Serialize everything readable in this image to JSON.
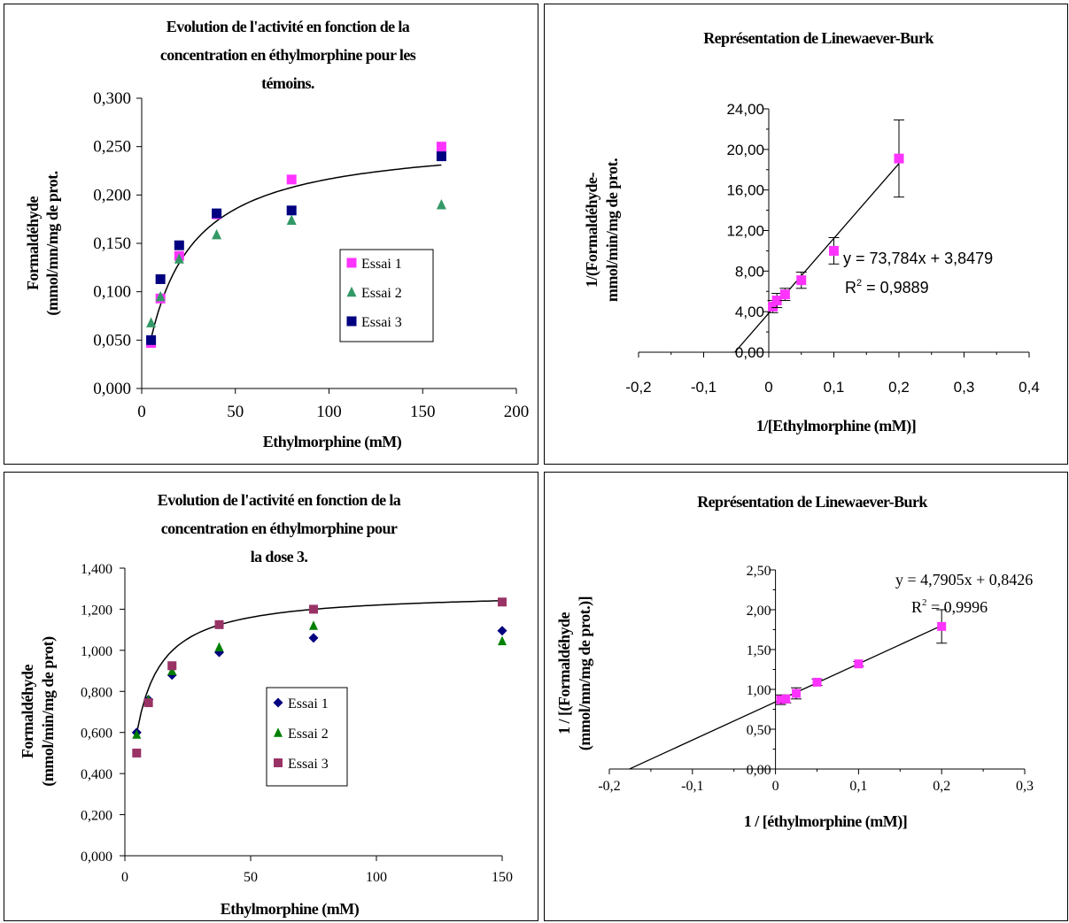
{
  "chart_data": [
    {
      "type": "scatter",
      "title": "Evolution de l'activité en fonction de la concentration en éthylmorphine pour les témoins.",
      "title_lines": [
        "Evolution de l'activité en fonction de la",
        "concentration en éthylmorphine pour les",
        "témoins."
      ],
      "xlabel": "Ethylmorphine (mM)",
      "ylabel": "Formaldéhyde (mmol/mn/mg de prot.",
      "ylabel_lines": [
        "Formaldéhyde",
        "(mmol/mn/mg de prot."
      ],
      "xlim": [
        0,
        200
      ],
      "ylim": [
        0,
        0.3
      ],
      "x_ticks": [
        "0",
        "50",
        "100",
        "150",
        "200"
      ],
      "y_ticks": [
        "0,000",
        "0,050",
        "0,100",
        "0,150",
        "0,200",
        "0,250",
        "0,300"
      ],
      "legend": "right",
      "fit": {
        "type": "michaelis-menten",
        "vmax": 0.26,
        "km": 20.1,
        "x_range": [
          5,
          160
        ]
      },
      "series": [
        {
          "name": "Essai 1",
          "marker": "square",
          "color": "#ff33ff",
          "x": [
            5,
            10,
            20,
            40,
            80,
            160
          ],
          "y": [
            0.047,
            0.093,
            0.137,
            0.18,
            0.216,
            0.25
          ]
        },
        {
          "name": "Essai 2",
          "marker": "triangle",
          "color": "#339966",
          "x": [
            5,
            10,
            20,
            40,
            80,
            160
          ],
          "y": [
            0.068,
            0.095,
            0.134,
            0.159,
            0.174,
            0.19
          ]
        },
        {
          "name": "Essai 3",
          "marker": "square",
          "color": "#000080",
          "x": [
            5,
            10,
            20,
            40,
            80,
            160
          ],
          "y": [
            0.05,
            0.113,
            0.148,
            0.181,
            0.184,
            0.24
          ]
        }
      ]
    },
    {
      "type": "scatter",
      "title": "Représentation de Linewaever-Burk",
      "title_lines": [
        "Représentation de Linewaever-Burk"
      ],
      "xlabel": "1/[Ethylmorphine (mM)]",
      "ylabel": "1/(Formaldéhyde- mmol/min/mg de prot.",
      "ylabel_lines": [
        "1/(Formaldéhyde-",
        "mmol/min/mg de prot."
      ],
      "xlim": [
        -0.2,
        0.4
      ],
      "ylim": [
        0,
        24
      ],
      "x_ticks": [
        "-0,2",
        "-0,1",
        "0",
        "0,1",
        "0,2",
        "0,3",
        "0,4"
      ],
      "y_ticks": [
        "0,00",
        "4,00",
        "8,00",
        "12,00",
        "16,00",
        "20,00",
        "24,00"
      ],
      "equation": "y = 73,784x + 3,8479",
      "r2_label": "R",
      "r2_value": " = 0,9889",
      "fit": {
        "slope": 73.784,
        "intercept": 3.8479,
        "x_range": [
          -0.052,
          0.2
        ]
      },
      "series": [
        {
          "name": "",
          "marker": "square",
          "color": "#ff33ff",
          "x": [
            0.00625,
            0.0125,
            0.025,
            0.05,
            0.1,
            0.2
          ],
          "y": [
            4.5,
            5.1,
            5.7,
            7.1,
            10.0,
            19.1
          ],
          "error": [
            0.6,
            0.7,
            0.6,
            0.8,
            1.3,
            3.8
          ]
        }
      ]
    },
    {
      "type": "scatter",
      "title": "Evolution de l'activité en fonction de la concentration en éthylmorphine pour la dose 3.",
      "title_lines": [
        "Evolution de l'activité en fonction de la",
        "concentration en éthylmorphine pour",
        "la dose 3."
      ],
      "xlabel": "Ethylmorphine (mM)",
      "ylabel": "Formaldéhyde (mmol/min/mg de prot)",
      "ylabel_lines": [
        "Formaldéhyde",
        "(mmol/min/mg de prot)"
      ],
      "xlim": [
        0,
        160
      ],
      "ylim": [
        0,
        1.4
      ],
      "x_ticks": [
        "0",
        "50",
        "100",
        "150"
      ],
      "y_ticks": [
        "0,000",
        "0,200",
        "0,400",
        "0,600",
        "0,800",
        "1,000",
        "1,200",
        "1,400"
      ],
      "legend": "right",
      "fit": {
        "type": "michaelis-menten",
        "vmax": 1.2865,
        "km": 5.8,
        "x_range": [
          5,
          160
        ]
      },
      "series": [
        {
          "name": "Essai 1",
          "marker": "diamond",
          "color": "#000080",
          "x": [
            5,
            10,
            20,
            40,
            80,
            160
          ],
          "y": [
            0.6,
            0.76,
            0.88,
            0.99,
            1.06,
            1.095
          ]
        },
        {
          "name": "Essai 2",
          "marker": "triangle",
          "color": "#008000",
          "x": [
            5,
            10,
            20,
            40,
            80,
            160
          ],
          "y": [
            0.59,
            0.76,
            0.9,
            1.015,
            1.12,
            1.045
          ]
        },
        {
          "name": "Essai 3",
          "marker": "square",
          "color": "#993366",
          "x": [
            5,
            10,
            20,
            40,
            80,
            160
          ],
          "y": [
            0.5,
            0.745,
            0.925,
            1.125,
            1.2,
            1.235
          ]
        }
      ]
    },
    {
      "type": "scatter",
      "title": "Représentation de Linewaever-Burk",
      "title_lines": [
        "Représentation de Linewaever-Burk"
      ],
      "xlabel": "1 / [éthylmorphine (mM)]",
      "ylabel": "1 / [(Formaldéhyde (mmol/mn/mg de prot.)]",
      "ylabel_lines": [
        "1 / [(Formaldéhyde",
        "(mmol/mn/mg de prot.)]"
      ],
      "xlim": [
        -0.2,
        0.3
      ],
      "ylim": [
        0,
        2.5
      ],
      "x_ticks": [
        "-0,2",
        "-0,1",
        "0",
        "0,1",
        "0,2",
        "0,3"
      ],
      "y_ticks": [
        "0,00",
        "0,50",
        "1,00",
        "1,50",
        "2,00",
        "2,50"
      ],
      "equation": "y = 4,7905x + 0,8426",
      "r2_label": "R",
      "r2_value": " = 0,9996",
      "fit": {
        "slope": 4.7905,
        "intercept": 0.8426,
        "x_range": [
          -0.176,
          0.2
        ]
      },
      "series": [
        {
          "name": "",
          "marker": "square",
          "color": "#ff33ff",
          "x": [
            0.00625,
            0.0125,
            0.025,
            0.05,
            0.1,
            0.2
          ],
          "y": [
            0.87,
            0.88,
            0.95,
            1.09,
            1.32,
            1.79
          ],
          "error": [
            0.06,
            0.05,
            0.07,
            0.04,
            0.03,
            0.21
          ]
        }
      ]
    }
  ]
}
